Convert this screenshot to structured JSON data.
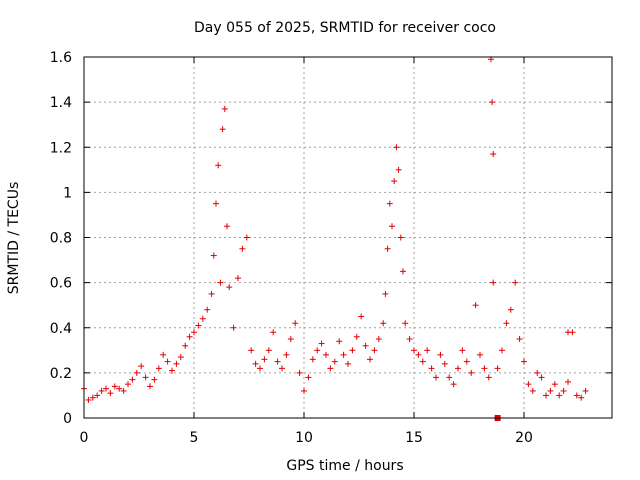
{
  "chart_data": {
    "type": "scatter",
    "title": "Day 055 of 2025, SRMTID for receiver coco",
    "xlabel": "GPS time / hours",
    "ylabel": "SRMTID / TECUs",
    "xlim": [
      0,
      24
    ],
    "ylim": [
      0,
      1.6
    ],
    "xticks": [
      0,
      5,
      10,
      15,
      20
    ],
    "xtick_labels": [
      "0",
      "5",
      "10",
      "15",
      "20"
    ],
    "yticks": [
      0,
      0.2,
      0.4,
      0.6,
      0.8,
      1.0,
      1.2,
      1.4,
      1.6
    ],
    "ytick_labels": [
      "0",
      "0.2",
      "0.4",
      "0.6",
      "0.8",
      "1",
      "1.2",
      "1.4",
      "1.6"
    ],
    "grid": true,
    "marker": "+",
    "color": "#e00000",
    "series": [
      {
        "name": "SRMTID",
        "x": [
          0.0,
          0.2,
          0.4,
          0.6,
          0.8,
          1.0,
          1.2,
          1.4,
          1.6,
          1.8,
          2.0,
          2.2,
          2.4,
          2.6,
          2.8,
          3.0,
          3.2,
          3.4,
          3.6,
          3.8,
          4.0,
          4.2,
          4.4,
          4.6,
          4.8,
          5.0,
          5.2,
          5.4,
          5.6,
          5.8,
          5.9,
          6.0,
          6.1,
          6.2,
          6.3,
          6.4,
          6.5,
          6.6,
          6.8,
          7.0,
          7.2,
          7.4,
          7.6,
          7.8,
          8.0,
          8.2,
          8.4,
          8.6,
          8.8,
          9.0,
          9.2,
          9.4,
          9.6,
          9.8,
          10.0,
          10.2,
          10.4,
          10.6,
          10.8,
          11.0,
          11.2,
          11.4,
          11.6,
          11.8,
          12.0,
          12.2,
          12.4,
          12.6,
          12.8,
          13.0,
          13.2,
          13.4,
          13.6,
          13.7,
          13.8,
          13.9,
          14.0,
          14.1,
          14.2,
          14.3,
          14.4,
          14.5,
          14.6,
          14.8,
          15.0,
          15.2,
          15.4,
          15.6,
          15.8,
          16.0,
          16.2,
          16.4,
          16.6,
          16.8,
          17.0,
          17.2,
          17.4,
          17.6,
          17.8,
          18.0,
          18.2,
          18.4,
          18.5,
          18.6,
          18.8,
          19.0,
          19.2,
          19.4,
          19.6,
          19.8,
          20.0,
          20.2,
          20.4,
          20.6,
          20.8,
          21.0,
          21.2,
          21.4,
          21.6,
          21.8,
          22.0,
          22.2,
          22.4,
          22.6,
          22.8
        ],
        "y": [
          0.13,
          0.08,
          0.09,
          0.1,
          0.12,
          0.13,
          0.11,
          0.14,
          0.13,
          0.12,
          0.15,
          0.17,
          0.2,
          0.23,
          0.18,
          0.14,
          0.17,
          0.22,
          0.28,
          0.25,
          0.21,
          0.24,
          0.27,
          0.32,
          0.36,
          0.38,
          0.41,
          0.44,
          0.48,
          0.55,
          0.72,
          0.95,
          1.12,
          0.6,
          1.28,
          1.37,
          0.85,
          0.58,
          0.4,
          0.62,
          0.75,
          0.8,
          0.3,
          0.24,
          0.22,
          0.26,
          0.3,
          0.38,
          0.25,
          0.22,
          0.28,
          0.35,
          0.42,
          0.2,
          0.12,
          0.18,
          0.26,
          0.3,
          0.33,
          0.28,
          0.22,
          0.25,
          0.34,
          0.28,
          0.24,
          0.3,
          0.36,
          0.45,
          0.32,
          0.26,
          0.3,
          0.35,
          0.42,
          0.55,
          0.75,
          0.95,
          0.85,
          1.05,
          1.2,
          1.1,
          0.8,
          0.65,
          0.42,
          0.35,
          0.3,
          0.28,
          0.25,
          0.3,
          0.22,
          0.18,
          0.28,
          0.24,
          0.18,
          0.15,
          0.22,
          0.3,
          0.25,
          0.2,
          0.5,
          0.28,
          0.22,
          0.18,
          1.59,
          0.6,
          0.22,
          0.3,
          0.42,
          0.48,
          0.6,
          0.35,
          0.25,
          0.15,
          0.12,
          0.2,
          0.18,
          0.1,
          0.12,
          0.15,
          0.1,
          0.12,
          0.16,
          0.38,
          0.1,
          0.09,
          0.12
        ]
      }
    ],
    "outliers": [
      {
        "x": 18.55,
        "y": 1.4
      },
      {
        "x": 18.6,
        "y": 1.17
      },
      {
        "x": 22.0,
        "y": 0.38
      }
    ],
    "square_marks": [
      {
        "x": 18.8,
        "y": 0.0
      }
    ]
  }
}
